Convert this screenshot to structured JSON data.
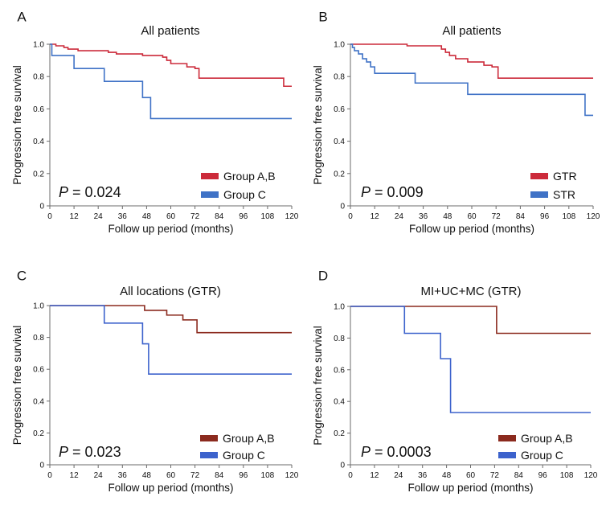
{
  "figure": {
    "description": "Kaplan-Meier progression free survival curves, four panels"
  },
  "colors": {
    "red": "#cc2a3a",
    "blue": "#3f72c6",
    "brown": "#8b2a1e",
    "blueD": "#3c62cc",
    "axis": "#6b6b6b",
    "text": "#111111"
  },
  "chart_data": [
    {
      "panel": "A",
      "type": "line",
      "step": true,
      "title": "All patients",
      "xlabel": "Follow up period (months)",
      "ylabel": "Progression free survival",
      "xlim": [
        0,
        120
      ],
      "ylim": [
        0,
        1.0
      ],
      "xticks": [
        0,
        12,
        24,
        36,
        48,
        60,
        72,
        84,
        96,
        108,
        120
      ],
      "yticks": [
        0,
        0.2,
        0.4,
        0.6,
        0.8,
        1.0
      ],
      "pvalue": {
        "italic": "P",
        "rest": " = 0.024"
      },
      "series": [
        {
          "name": "Group A,B",
          "color": "red",
          "points": [
            [
              0,
              1.0
            ],
            [
              3,
              0.99
            ],
            [
              7,
              0.98
            ],
            [
              9,
              0.97
            ],
            [
              14,
              0.96
            ],
            [
              29,
              0.95
            ],
            [
              33,
              0.94
            ],
            [
              46,
              0.93
            ],
            [
              56,
              0.92
            ],
            [
              58,
              0.9
            ],
            [
              60,
              0.88
            ],
            [
              68,
              0.86
            ],
            [
              72,
              0.85
            ],
            [
              74,
              0.79
            ],
            [
              115,
              0.79
            ],
            [
              116,
              0.74
            ],
            [
              120,
              0.74
            ]
          ]
        },
        {
          "name": "Group C",
          "color": "blue",
          "points": [
            [
              0,
              1.0
            ],
            [
              1,
              0.93
            ],
            [
              12,
              0.85
            ],
            [
              27,
              0.77
            ],
            [
              46,
              0.67
            ],
            [
              50,
              0.54
            ],
            [
              120,
              0.54
            ]
          ]
        }
      ]
    },
    {
      "panel": "B",
      "type": "line",
      "step": true,
      "title": "All patients",
      "xlabel": "Follow up period (months)",
      "ylabel": "Progression free survival",
      "xlim": [
        0,
        120
      ],
      "ylim": [
        0,
        1.0
      ],
      "xticks": [
        0,
        12,
        24,
        36,
        48,
        60,
        72,
        84,
        96,
        108,
        120
      ],
      "yticks": [
        0,
        0.2,
        0.4,
        0.6,
        0.8,
        1.0
      ],
      "pvalue": {
        "italic": "P",
        "rest": " = 0.009"
      },
      "series": [
        {
          "name": "GTR",
          "color": "red",
          "points": [
            [
              0,
              1.0
            ],
            [
              28,
              0.99
            ],
            [
              45,
              0.97
            ],
            [
              47,
              0.95
            ],
            [
              49,
              0.93
            ],
            [
              52,
              0.91
            ],
            [
              58,
              0.89
            ],
            [
              66,
              0.87
            ],
            [
              70,
              0.86
            ],
            [
              73,
              0.79
            ],
            [
              120,
              0.79
            ]
          ]
        },
        {
          "name": "STR",
          "color": "blue",
          "points": [
            [
              0,
              1.0
            ],
            [
              1,
              0.98
            ],
            [
              2,
              0.96
            ],
            [
              4,
              0.94
            ],
            [
              6,
              0.91
            ],
            [
              8,
              0.89
            ],
            [
              10,
              0.86
            ],
            [
              12,
              0.82
            ],
            [
              32,
              0.76
            ],
            [
              58,
              0.69
            ],
            [
              116,
              0.56
            ],
            [
              120,
              0.56
            ]
          ]
        }
      ]
    },
    {
      "panel": "C",
      "type": "line",
      "step": true,
      "title": "All locations (GTR)",
      "xlabel": "Follow up period (months)",
      "ylabel": "Progression free survival",
      "xlim": [
        0,
        120
      ],
      "ylim": [
        0,
        1.0
      ],
      "xticks": [
        0,
        12,
        24,
        36,
        48,
        60,
        72,
        84,
        96,
        108,
        120
      ],
      "yticks": [
        0,
        0.2,
        0.4,
        0.6,
        0.8,
        1.0
      ],
      "pvalue": {
        "italic": "P",
        "rest": " = 0.023"
      },
      "series": [
        {
          "name": "Group A,B",
          "color": "brown",
          "points": [
            [
              0,
              1.0
            ],
            [
              47,
              0.97
            ],
            [
              58,
              0.94
            ],
            [
              66,
              0.91
            ],
            [
              73,
              0.83
            ],
            [
              120,
              0.83
            ]
          ]
        },
        {
          "name": "Group C",
          "color": "blueD",
          "points": [
            [
              0,
              1.0
            ],
            [
              27,
              0.89
            ],
            [
              46,
              0.76
            ],
            [
              49,
              0.57
            ],
            [
              120,
              0.57
            ]
          ]
        }
      ]
    },
    {
      "panel": "D",
      "type": "line",
      "step": true,
      "title": "MI+UC+MC (GTR)",
      "xlabel": "Follow up period (months)",
      "ylabel": "Progression free survival",
      "xlim": [
        0,
        120
      ],
      "ylim": [
        0,
        1.0
      ],
      "xticks": [
        0,
        12,
        24,
        36,
        48,
        60,
        72,
        84,
        96,
        108,
        120
      ],
      "yticks": [
        0,
        0.2,
        0.4,
        0.6,
        0.8,
        1.0
      ],
      "pvalue": {
        "italic": "P",
        "rest": " = 0.0003"
      },
      "series": [
        {
          "name": "Group A,B",
          "color": "brown",
          "points": [
            [
              0,
              1.0
            ],
            [
              73,
              0.83
            ],
            [
              120,
              0.83
            ]
          ]
        },
        {
          "name": "Group C",
          "color": "blueD",
          "points": [
            [
              0,
              1.0
            ],
            [
              27,
              0.83
            ],
            [
              45,
              0.67
            ],
            [
              50,
              0.33
            ],
            [
              120,
              0.33
            ]
          ]
        }
      ]
    }
  ]
}
